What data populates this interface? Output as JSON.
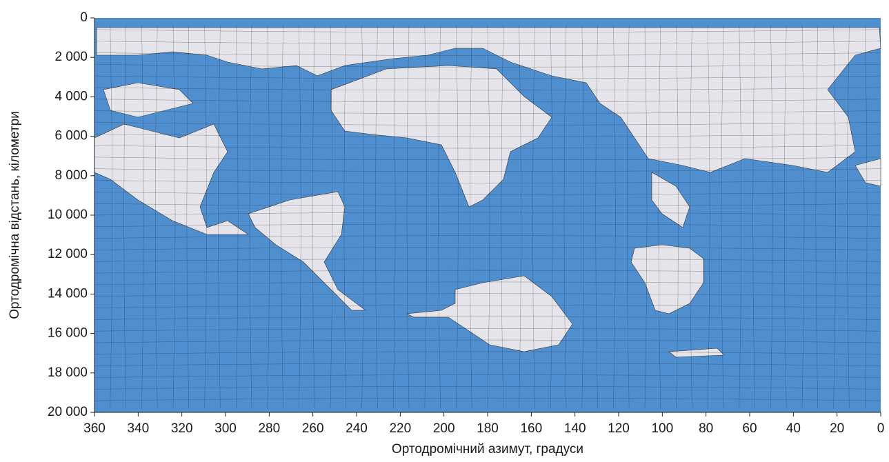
{
  "chart_data": {
    "type": "map",
    "x_label": "Ортодромічний азимут, градуси",
    "y_label": "Ортодромічна відстань, кілометри",
    "xlim": [
      360,
      0
    ],
    "ylim": [
      0,
      20000
    ],
    "xticks": [
      360,
      340,
      320,
      300,
      280,
      260,
      240,
      220,
      200,
      180,
      160,
      140,
      120,
      100,
      80,
      60,
      40,
      20,
      0
    ],
    "yticks": [
      0,
      {
        "value": 2000,
        "label": "2 000"
      },
      {
        "value": 4000,
        "label": "4 000"
      },
      {
        "value": 6000,
        "label": "6 000"
      },
      {
        "value": 8000,
        "label": "8 000"
      },
      {
        "value": 10000,
        "label": "10 000"
      },
      {
        "value": 12000,
        "label": "12 000"
      },
      {
        "value": 14000,
        "label": "14 000"
      },
      {
        "value": 16000,
        "label": "16 000"
      },
      {
        "value": 18000,
        "label": "18 000"
      },
      {
        "value": 20000,
        "label": "20 000"
      }
    ],
    "ocean_color": "#4f8fcf"
  }
}
